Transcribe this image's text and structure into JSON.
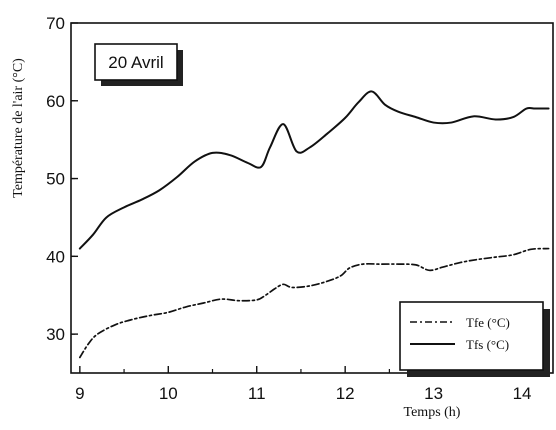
{
  "chart_data": {
    "type": "line",
    "title": "",
    "annotation": "20 Avril",
    "xlabel": "Temps (h)",
    "ylabel": "Température de l'air (°C)",
    "xlim": [
      8.9,
      14.35
    ],
    "ylim": [
      25,
      70
    ],
    "xticks": [
      9,
      10,
      11,
      12,
      13,
      14
    ],
    "yticks": [
      30,
      40,
      50,
      60,
      70
    ],
    "grid": false,
    "legend": "bottom-right",
    "series": [
      {
        "name": "Tfe (°C)",
        "style": "dash-dot",
        "color": "#111111",
        "x": [
          9.0,
          9.1,
          9.2,
          9.4,
          9.6,
          9.8,
          10.0,
          10.2,
          10.4,
          10.6,
          10.8,
          11.0,
          11.1,
          11.2,
          11.3,
          11.4,
          11.6,
          11.8,
          11.95,
          12.05,
          12.2,
          12.4,
          12.6,
          12.8,
          12.95,
          13.1,
          13.3,
          13.5,
          13.7,
          13.9,
          14.1,
          14.3
        ],
        "y": [
          27.0,
          28.8,
          30.0,
          31.2,
          31.9,
          32.4,
          32.8,
          33.5,
          34.0,
          34.5,
          34.3,
          34.4,
          35.0,
          35.8,
          36.4,
          36.0,
          36.2,
          36.8,
          37.5,
          38.5,
          39.0,
          39.0,
          39.0,
          38.9,
          38.2,
          38.6,
          39.2,
          39.6,
          39.9,
          40.2,
          40.9,
          41.0
        ]
      },
      {
        "name": "Tfs (°C)",
        "style": "solid",
        "color": "#111111",
        "x": [
          9.0,
          9.15,
          9.3,
          9.5,
          9.7,
          9.9,
          10.1,
          10.3,
          10.5,
          10.7,
          10.9,
          11.05,
          11.15,
          11.3,
          11.45,
          11.6,
          11.8,
          12.0,
          12.15,
          12.3,
          12.45,
          12.6,
          12.8,
          13.0,
          13.2,
          13.45,
          13.7,
          13.9,
          14.05,
          14.15,
          14.3
        ],
        "y": [
          41.0,
          42.8,
          45.0,
          46.3,
          47.3,
          48.5,
          50.2,
          52.2,
          53.3,
          53.0,
          52.0,
          51.5,
          54.0,
          57.0,
          53.5,
          54.0,
          55.8,
          57.8,
          59.8,
          61.2,
          59.5,
          58.6,
          57.9,
          57.2,
          57.2,
          58.0,
          57.6,
          57.9,
          59.0,
          59.0,
          59.0
        ]
      }
    ]
  }
}
